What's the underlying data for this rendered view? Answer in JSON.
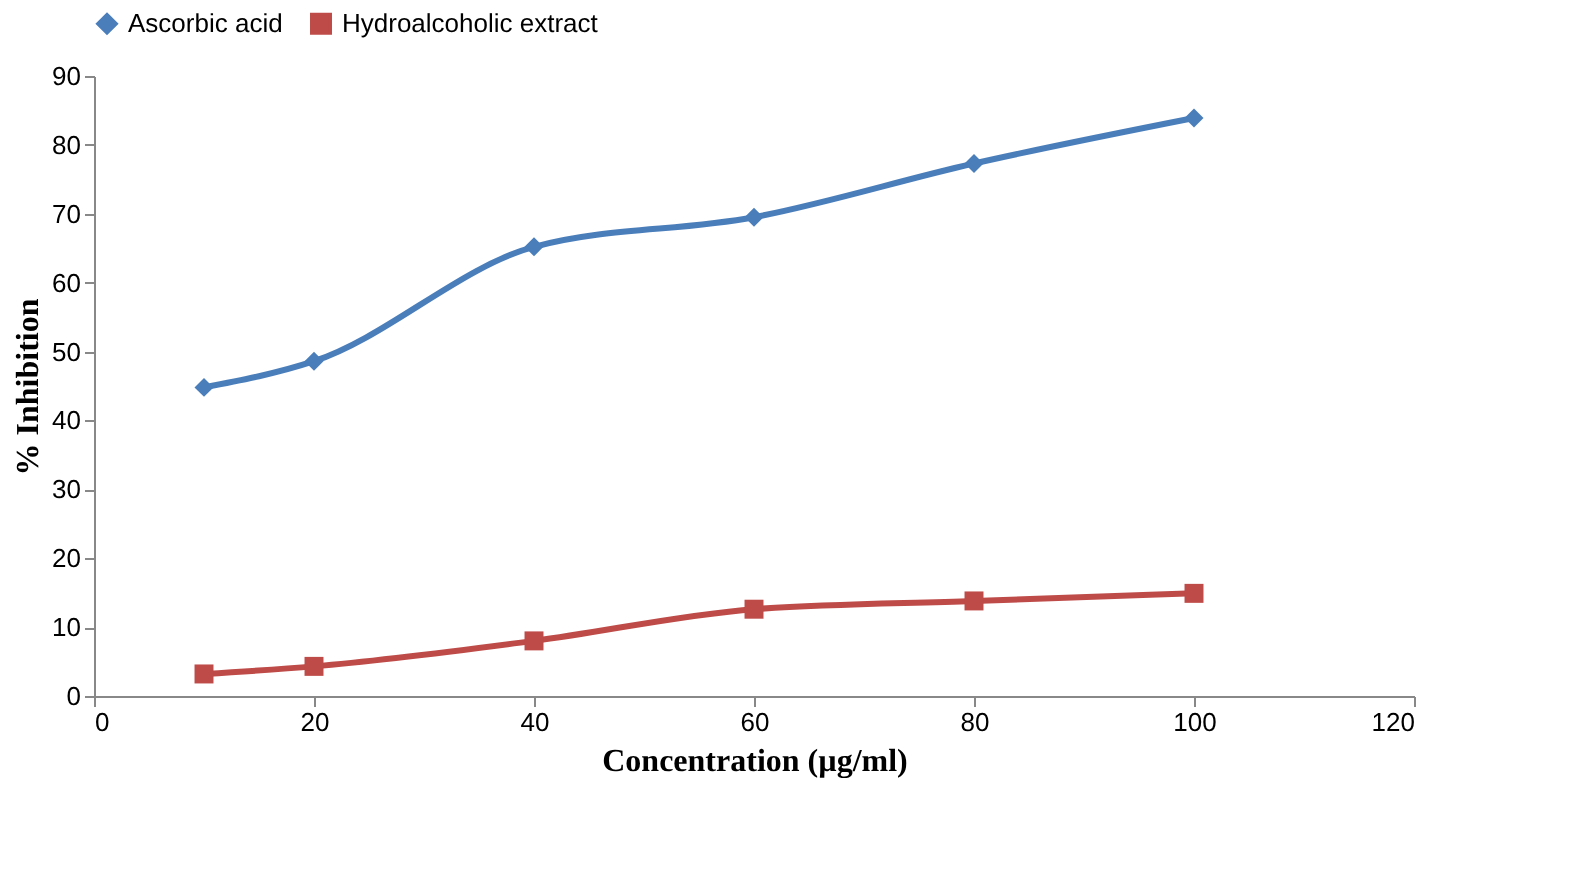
{
  "chart_data": {
    "type": "line",
    "xlabel": "Concentration (µg/ml)",
    "ylabel": "% Inhibition",
    "x": [
      10,
      20,
      40,
      60,
      80,
      100
    ],
    "series": [
      {
        "name": "Ascorbic acid",
        "color": "#4a7ebb",
        "marker": "diamond",
        "values": [
          44.8,
          48.6,
          65.2,
          69.5,
          77.3,
          83.9
        ]
      },
      {
        "name": "Hydroalcoholic extract",
        "color": "#be4b48",
        "marker": "square",
        "values": [
          3.2,
          4.3,
          8.0,
          12.6,
          13.8,
          14.9
        ]
      }
    ],
    "xlim": [
      0,
      120
    ],
    "xticks": [
      0,
      20,
      40,
      60,
      80,
      100,
      120
    ],
    "ylim": [
      0,
      90
    ],
    "yticks": [
      0,
      10,
      20,
      30,
      40,
      50,
      60,
      70,
      80,
      90
    ],
    "grid": false,
    "legend": "top",
    "line_style": "solid"
  }
}
